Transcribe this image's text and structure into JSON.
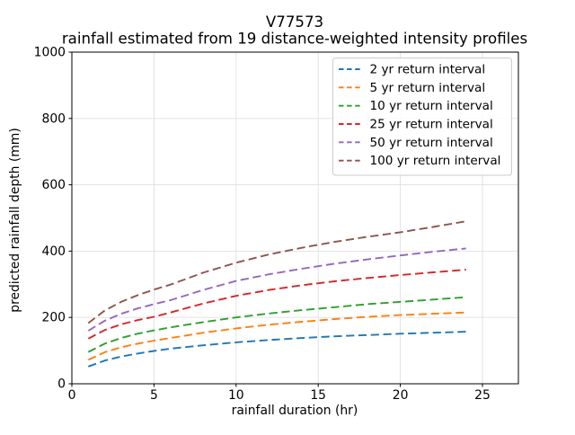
{
  "chart_data": {
    "type": "line",
    "title": "V77573",
    "subtitle": "rainfall estimated from 19 distance-weighted intensity profiles",
    "xlabel": "rainfall duration (hr)",
    "ylabel": "predicted rainfall depth (mm)",
    "xlim": [
      0,
      25
    ],
    "ylim": [
      0,
      1000
    ],
    "xticks": [
      0,
      5,
      10,
      15,
      20,
      25
    ],
    "yticks": [
      0,
      200,
      400,
      600,
      800,
      1000
    ],
    "grid": true,
    "legend_position": "upper right",
    "line_style": "dashed",
    "x": [
      1,
      2,
      3,
      4,
      5,
      6,
      8,
      10,
      12,
      14,
      16,
      18,
      20,
      22,
      24
    ],
    "series": [
      {
        "name": "2 yr return interval",
        "color": "#1f77b4",
        "values": [
          52,
          70,
          82,
          91,
          99,
          106,
          116,
          125,
          132,
          138,
          143,
          147,
          151,
          154,
          157
        ]
      },
      {
        "name": "5 yr return interval",
        "color": "#ff7f0e",
        "values": [
          72,
          95,
          110,
          121,
          130,
          138,
          154,
          167,
          178,
          187,
          195,
          202,
          207,
          211,
          215
        ]
      },
      {
        "name": "10 yr return interval",
        "color": "#2ca02c",
        "values": [
          96,
          121,
          138,
          151,
          161,
          170,
          186,
          200,
          212,
          222,
          231,
          240,
          247,
          254,
          261
        ]
      },
      {
        "name": "25 yr return interval",
        "color": "#d62728",
        "values": [
          136,
          162,
          179,
          192,
          202,
          215,
          242,
          265,
          283,
          297,
          309,
          319,
          328,
          336,
          344
        ]
      },
      {
        "name": "50 yr return interval",
        "color": "#9467bd",
        "values": [
          160,
          190,
          211,
          227,
          240,
          252,
          283,
          310,
          330,
          347,
          362,
          375,
          387,
          398,
          408
        ]
      },
      {
        "name": "100 yr return interval",
        "color": "#8c564b",
        "values": [
          183,
          221,
          247,
          267,
          284,
          299,
          335,
          365,
          390,
          410,
          428,
          443,
          457,
          473,
          490
        ]
      }
    ]
  }
}
